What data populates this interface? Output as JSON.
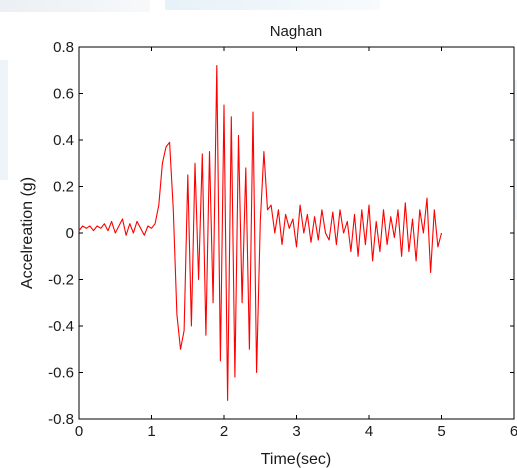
{
  "chart_data": {
    "type": "line",
    "title": "Naghan",
    "xlabel": "Time(sec)",
    "ylabel": "Accelreation (g)",
    "xlim": [
      0,
      6
    ],
    "ylim": [
      -0.8,
      0.8
    ],
    "xticks": [
      "0",
      "1",
      "2",
      "3",
      "4",
      "5",
      "6"
    ],
    "yticks": [
      "0.8",
      "0.6",
      "0.4",
      "0.2",
      "0",
      "-0.2",
      "-0.4",
      "-0.6",
      "-0.8"
    ],
    "grid": false,
    "legend": "none",
    "series": [
      {
        "color": "#ff0000",
        "x": [
          0.0,
          0.05,
          0.1,
          0.15,
          0.2,
          0.25,
          0.3,
          0.35,
          0.4,
          0.45,
          0.5,
          0.55,
          0.6,
          0.65,
          0.7,
          0.75,
          0.8,
          0.85,
          0.9,
          0.95,
          1.0,
          1.05,
          1.1,
          1.15,
          1.2,
          1.25,
          1.3,
          1.35,
          1.4,
          1.45,
          1.5,
          1.55,
          1.6,
          1.65,
          1.7,
          1.75,
          1.8,
          1.85,
          1.9,
          1.95,
          2.0,
          2.05,
          2.1,
          2.15,
          2.2,
          2.25,
          2.3,
          2.35,
          2.4,
          2.45,
          2.5,
          2.55,
          2.6,
          2.65,
          2.7,
          2.75,
          2.8,
          2.85,
          2.9,
          2.95,
          3.0,
          3.05,
          3.1,
          3.15,
          3.2,
          3.25,
          3.3,
          3.35,
          3.4,
          3.45,
          3.5,
          3.55,
          3.6,
          3.65,
          3.7,
          3.75,
          3.8,
          3.85,
          3.9,
          3.95,
          4.0,
          4.05,
          4.1,
          4.15,
          4.2,
          4.25,
          4.3,
          4.35,
          4.4,
          4.45,
          4.5,
          4.55,
          4.6,
          4.65,
          4.7,
          4.75,
          4.8,
          4.85,
          4.9,
          4.95,
          5.0
        ],
        "y": [
          0.01,
          0.03,
          0.02,
          0.03,
          0.01,
          0.03,
          0.02,
          0.04,
          0.01,
          0.05,
          0.0,
          0.03,
          0.06,
          -0.01,
          0.04,
          0.0,
          0.05,
          0.02,
          -0.01,
          0.03,
          0.02,
          0.04,
          0.12,
          0.3,
          0.37,
          0.39,
          0.1,
          -0.35,
          -0.5,
          -0.42,
          0.25,
          -0.4,
          0.3,
          -0.2,
          0.34,
          -0.44,
          0.35,
          -0.3,
          0.72,
          -0.55,
          0.55,
          -0.72,
          0.5,
          -0.62,
          0.42,
          -0.3,
          0.28,
          -0.5,
          0.52,
          -0.6,
          0.05,
          0.35,
          0.1,
          0.12,
          0.0,
          0.1,
          -0.05,
          0.08,
          0.02,
          0.06,
          -0.06,
          0.12,
          0.0,
          0.08,
          -0.04,
          0.07,
          -0.03,
          0.1,
          0.0,
          -0.03,
          0.09,
          -0.05,
          0.1,
          0.0,
          0.05,
          -0.08,
          0.08,
          -0.1,
          0.1,
          -0.05,
          0.12,
          -0.12,
          0.05,
          -0.08,
          0.1,
          -0.05,
          0.07,
          -0.02,
          0.1,
          -0.1,
          0.13,
          -0.08,
          0.06,
          -0.12,
          0.1,
          0.0,
          0.15,
          -0.17,
          0.1,
          -0.06,
          0.0
        ]
      }
    ]
  }
}
